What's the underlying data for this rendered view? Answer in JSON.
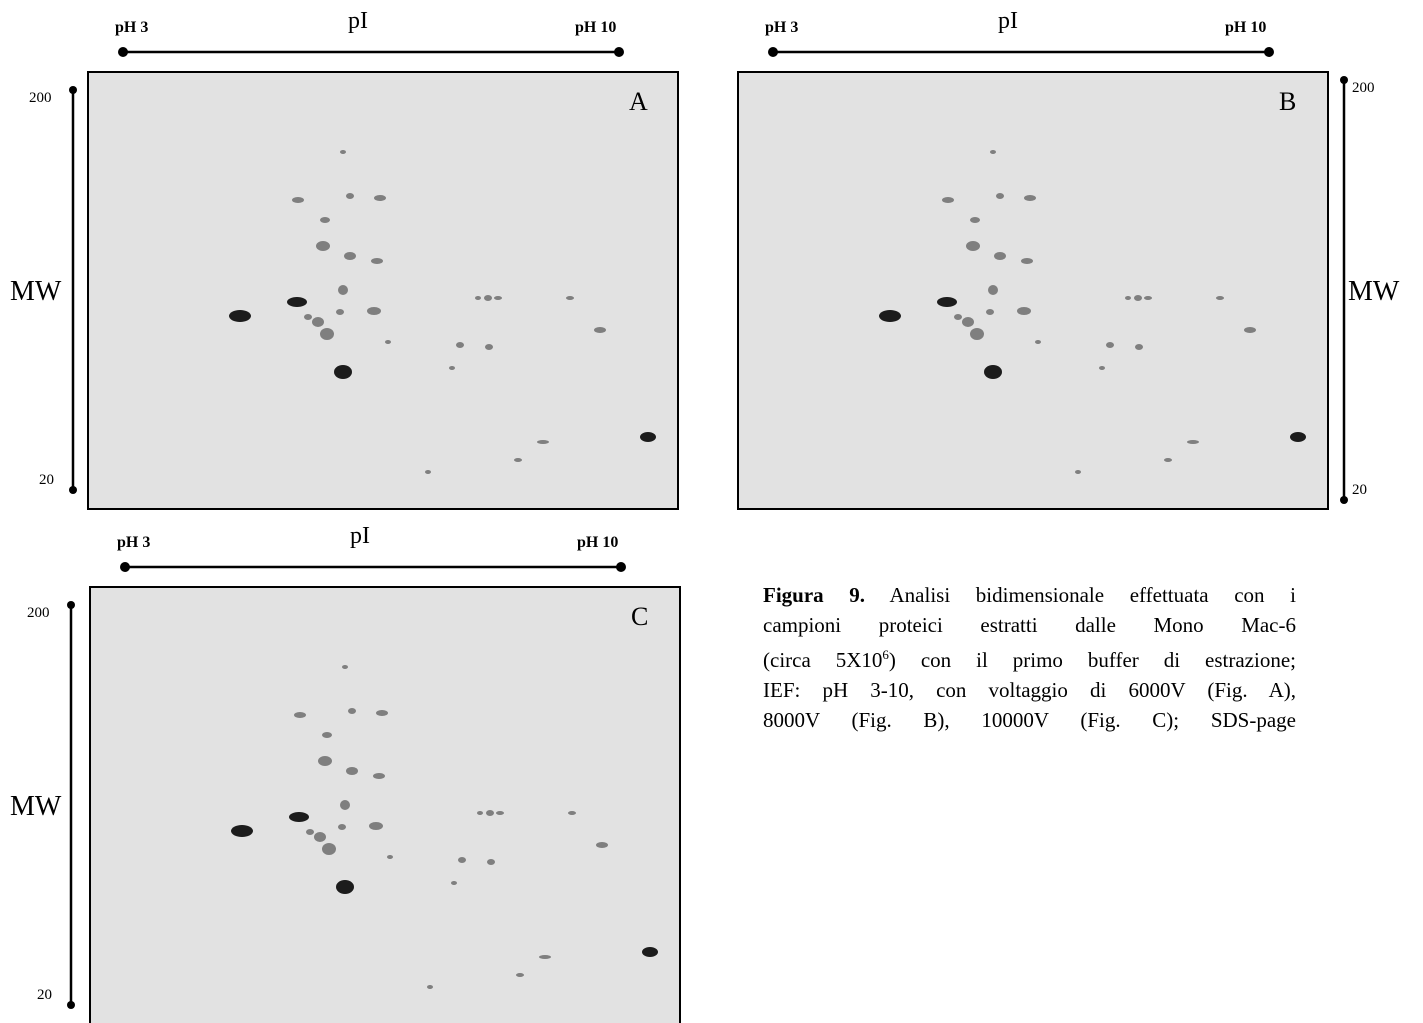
{
  "panels": [
    {
      "letter": "A",
      "ph_low": "pH 3",
      "ph_high": "pH 10",
      "pi": "pI",
      "mw": "MW",
      "mw_high": "200",
      "mw_low": "20"
    },
    {
      "letter": "B",
      "ph_low": "pH 3",
      "ph_high": "pH 10",
      "pi": "pI",
      "mw": "MW",
      "mw_high": "200",
      "mw_low": "20"
    },
    {
      "letter": "C",
      "ph_low": "pH 3",
      "ph_high": "pH 10",
      "pi": "pI",
      "mw": "MW",
      "mw_high": "200",
      "mw_low": "20"
    }
  ],
  "caption": {
    "label": "Figura 9.",
    "line0": "Analisi bidimensionale effettuata con i",
    "line1": "campioni proteici estratti dalle Mono Mac-6",
    "line2_before": "(circa 5X10",
    "line2_sup": "6",
    "line2_after": ") con il primo buffer di estrazione;",
    "line3": "IEF: pH 3-10, con voltaggio di 6000V (Fig. A),",
    "line4": "8000V (Fig. B), 10000V (Fig. C); SDS-page"
  }
}
